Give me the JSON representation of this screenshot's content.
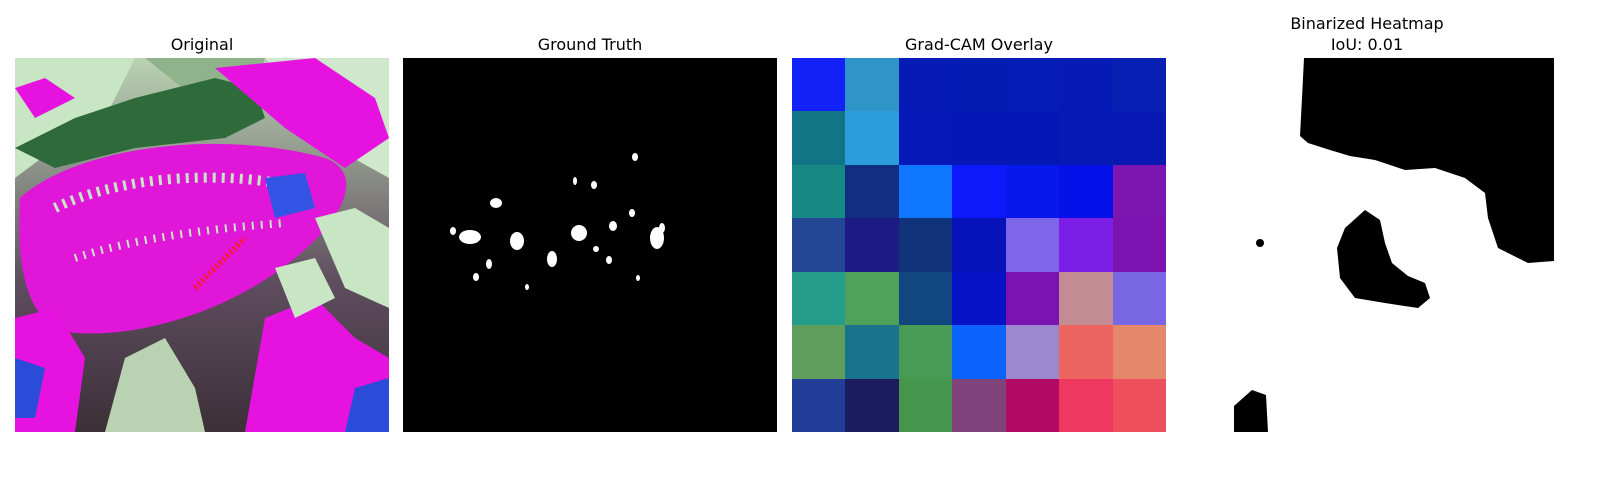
{
  "panels": {
    "original": {
      "title": "Original"
    },
    "ground_truth": {
      "title": "Ground Truth"
    },
    "gradcam": {
      "title": "Grad-CAM Overlay",
      "grid": [
        [
          "#1221f5",
          "#2f95c9",
          "#061ab5",
          "#051cb3",
          "#061db5",
          "#061ab5",
          "#071fb3"
        ],
        [
          "#127585",
          "#2c9cdd",
          "#0618b7",
          "#0518b7",
          "#0518b7",
          "#061ab5",
          "#0719b2"
        ],
        [
          "#178985",
          "#112e82",
          "#0e76ff",
          "#0b19fb",
          "#0718ed",
          "#0412e9",
          "#7d16b0"
        ],
        [
          "#244795",
          "#1d1b83",
          "#11337c",
          "#0613ba",
          "#7d66e9",
          "#7b1fe6",
          "#7c12b0"
        ],
        [
          "#259d8a",
          "#50a159",
          "#114680",
          "#0612c5",
          "#7b12b2",
          "#c38b92",
          "#7866e2"
        ],
        [
          "#609e5d",
          "#1c7390",
          "#489b54",
          "#0a64fc",
          "#9a89cc",
          "#ec6560",
          "#e5876a"
        ],
        [
          "#223e98",
          "#1c1c5e",
          "#45954c",
          "#81437c",
          "#b10b64",
          "#ef385f",
          "#ee4f5c"
        ]
      ]
    },
    "binarized": {
      "title": "Binarized Heatmap",
      "subtitle": "IoU: 0.01"
    }
  }
}
